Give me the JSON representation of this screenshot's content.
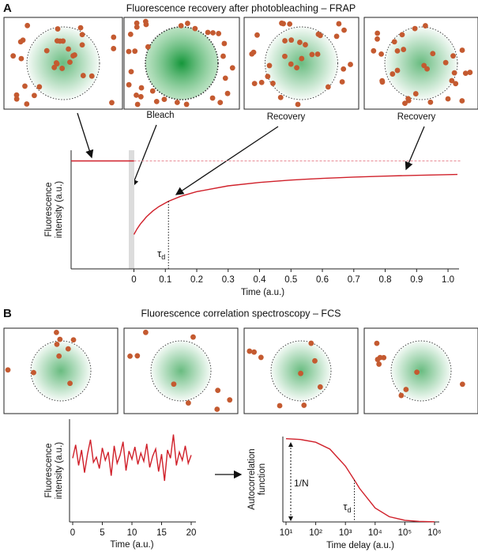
{
  "panels": [
    {
      "label": "A",
      "title": "Fluorescence recovery after photobleaching – FRAP",
      "annotations": [
        "Bleach",
        "Recovery",
        "Recovery"
      ]
    },
    {
      "label": "B",
      "title": "Fluorescence correlation spectroscopy – FCS"
    }
  ],
  "chart_data": [
    {
      "type": "line",
      "xlabel": "Time (a.u.)",
      "ylabel": [
        "Fluorescence",
        "intensity (a.u.)"
      ],
      "xlim": [
        -0.2,
        1.02
      ],
      "ylim": [
        0,
        1
      ],
      "xticks": [
        0,
        0.1,
        0.2,
        0.3,
        0.4,
        0.5,
        0.6,
        0.7,
        0.8,
        0.9,
        {
          "value": 1,
          "label": "1.0"
        }
      ],
      "series": [
        {
          "color": "#d0202a",
          "linestyle": "solid",
          "x": [
            -0.2,
            0
          ],
          "values": [
            0.91,
            0.91
          ]
        },
        {
          "color": "#e88a95",
          "linestyle": "dashed",
          "x": [
            0,
            1.04
          ],
          "values": [
            0.91,
            0.91
          ]
        },
        {
          "color": "#d0202a",
          "linestyle": "solid",
          "x": [
            0,
            0.01,
            0.02,
            0.04,
            0.06,
            0.08,
            0.11,
            0.15,
            0.2,
            0.3,
            0.4,
            0.5,
            0.6,
            0.7,
            0.8,
            0.9,
            1.03
          ],
          "values": [
            0.29,
            0.337,
            0.376,
            0.439,
            0.488,
            0.526,
            0.57,
            0.613,
            0.651,
            0.7,
            0.729,
            0.749,
            0.763,
            0.774,
            0.782,
            0.789,
            0.796
          ]
        }
      ],
      "markers": [
        {
          "x": 0.11,
          "symbol": "τ",
          "subscript": "d"
        }
      ]
    },
    {
      "type": "line",
      "xlabel": "Time (a.u.)",
      "ylabel": [
        "Fluorescence",
        "intensity (a.u.)"
      ],
      "xlim": [
        0,
        20
      ],
      "ylim": [
        0,
        1
      ],
      "xticks": [
        0,
        5,
        10,
        15,
        20
      ],
      "series": [
        {
          "color": "#d0202a",
          "linestyle": "solid",
          "x": [
            0,
            0.5,
            1,
            1.5,
            2,
            2.5,
            3,
            3.5,
            4,
            4.5,
            5,
            5.5,
            6,
            6.5,
            7,
            7.5,
            8,
            8.5,
            9,
            9.5,
            10,
            10.5,
            11,
            11.5,
            12,
            12.5,
            13,
            13.5,
            14,
            14.5,
            15,
            15.5,
            16,
            16.5,
            17,
            17.5,
            18,
            18.5,
            19,
            19.5,
            20
          ],
          "values": [
            0.62,
            0.75,
            0.55,
            0.7,
            0.48,
            0.66,
            0.8,
            0.58,
            0.63,
            0.52,
            0.72,
            0.6,
            0.68,
            0.45,
            0.74,
            0.57,
            0.65,
            0.78,
            0.5,
            0.69,
            0.61,
            0.73,
            0.56,
            0.67,
            0.59,
            0.76,
            0.53,
            0.64,
            0.71,
            0.49,
            0.66,
            0.4,
            0.7,
            0.62,
            0.85,
            0.55,
            0.68,
            0.6,
            0.74,
            0.57,
            0.65
          ]
        }
      ]
    },
    {
      "type": "line",
      "xlabel": "Time delay (a.u.)",
      "ylabel": [
        "Autocorrelation",
        "function"
      ],
      "xscale": "log",
      "xlim": [
        10,
        1000000
      ],
      "ylim": [
        0,
        1.02
      ],
      "xticks": [
        {
          "value": 10,
          "label": "10¹"
        },
        {
          "value": 100,
          "label": "10²"
        },
        {
          "value": 1000,
          "label": "10³"
        },
        {
          "value": 10000,
          "label": "10⁴"
        },
        {
          "value": 100000,
          "label": "10⁵"
        },
        {
          "value": 1000000,
          "label": "10⁶"
        }
      ],
      "series": [
        {
          "color": "#d0202a",
          "linestyle": "solid",
          "x": [
            10,
            30,
            100,
            300,
            1000,
            2000,
            3000,
            10000,
            30000,
            100000,
            300000,
            1000000
          ],
          "values": [
            0.995,
            0.985,
            0.952,
            0.87,
            0.667,
            0.5,
            0.4,
            0.167,
            0.0625,
            0.0196,
            0.0066,
            0.002
          ]
        }
      ],
      "markers": [
        {
          "x": 2000,
          "symbol": "τ",
          "subscript": "d"
        }
      ],
      "amplitude_label": "1/N"
    }
  ]
}
